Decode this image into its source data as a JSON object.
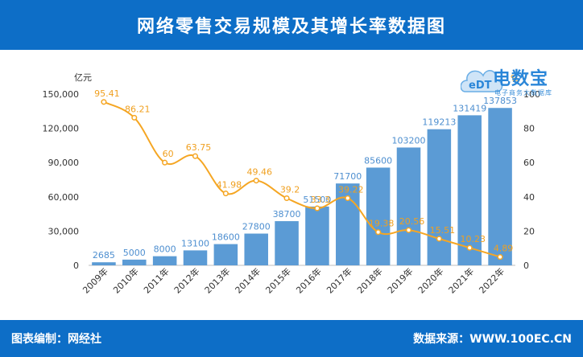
{
  "header": {
    "title": "网络零售交易规模及其增长率数据图"
  },
  "logo": {
    "name": "电数宝",
    "subtitle": "电子商务大数据库",
    "mark": "eDT"
  },
  "footer": {
    "left": "图表编制：网经社",
    "right": "数据来源：WWW.100EC.CN"
  },
  "colors": {
    "header": "#0d6ec7",
    "bar": "#5b9bd5",
    "line": "#f5a623",
    "bar_label": "#4e8fd0",
    "line_label": "#f0a020"
  },
  "chart_data": {
    "type": "bar",
    "categories": [
      "2009年",
      "2010年",
      "2011年",
      "2012年",
      "2013年",
      "2014年",
      "2015年",
      "2016年",
      "2017年",
      "2018年",
      "2019年",
      "2020年",
      "2021年",
      "2022年"
    ],
    "series": [
      {
        "type": "bar",
        "axis": "left",
        "values": [
          2685,
          5000,
          8000,
          13100,
          18600,
          27800,
          38700,
          51500,
          71700,
          85600,
          103200,
          119213,
          131419,
          137853
        ]
      },
      {
        "type": "line",
        "axis": "right",
        "values": [
          95.41,
          86.21,
          60,
          63.75,
          41.98,
          49.46,
          39.2,
          33.3,
          39.22,
          19.38,
          20.56,
          15.51,
          10.23,
          4.89
        ]
      }
    ],
    "ylabel": "亿元",
    "y2label": "%",
    "ylim": [
      0,
      150000
    ],
    "y2lim": [
      0,
      100
    ],
    "yticks": [
      "0",
      "30,000",
      "60,000",
      "90,000",
      "120,000",
      "150,000"
    ],
    "y2ticks": [
      "0",
      "20",
      "40",
      "60",
      "80",
      "100"
    ],
    "grid": false
  }
}
